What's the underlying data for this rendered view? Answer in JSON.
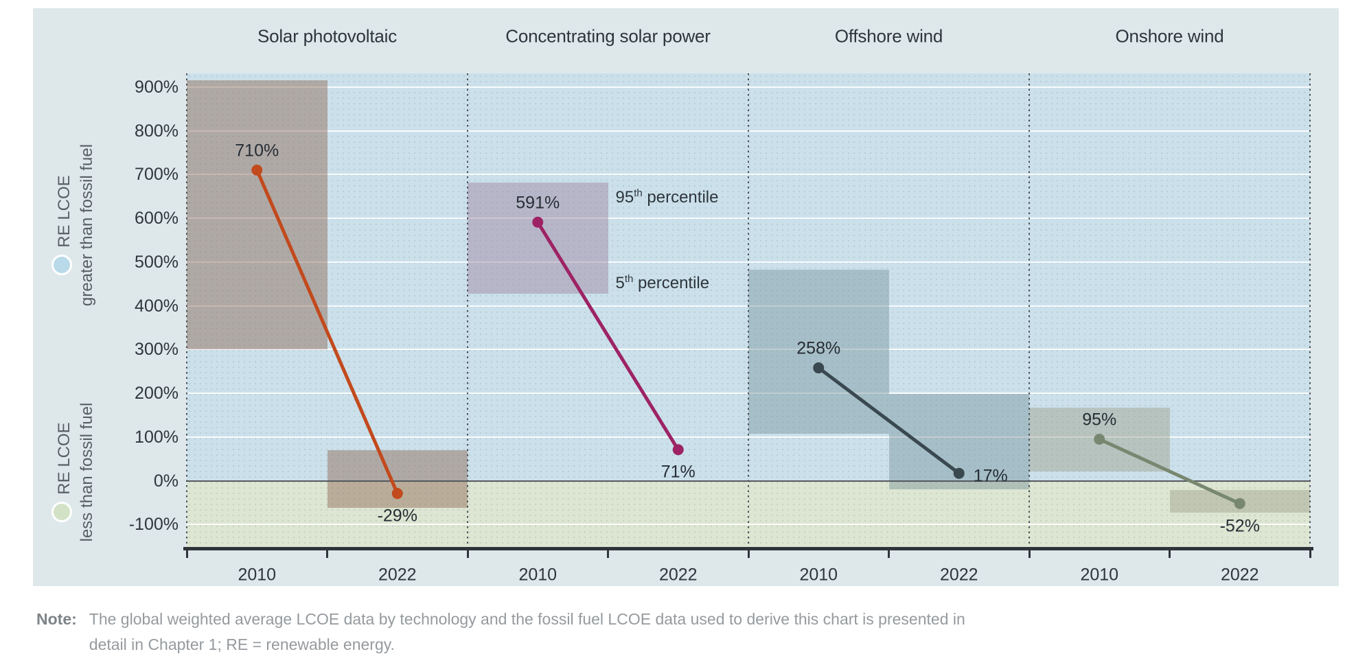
{
  "chart_data": {
    "type": "line",
    "subtype": "slope-chart-with-percentile-bands",
    "title": "",
    "categories": [
      "2010",
      "2022"
    ],
    "series": [
      {
        "name": "Solar photovoltaic",
        "values": [
          710,
          -29
        ],
        "value_labels": [
          "710%",
          "-29%"
        ],
        "label_positions": [
          "above",
          "below"
        ],
        "line_color": "#c24a1d",
        "band_color": "rgba(143,103,84,0.45)",
        "percentile_bands": [
          [
            300,
            915
          ],
          [
            -62,
            70
          ]
        ]
      },
      {
        "name": "Concentrating solar power",
        "values": [
          591,
          71
        ],
        "value_labels": [
          "591%",
          "71%"
        ],
        "label_positions": [
          "above",
          "below"
        ],
        "line_color": "#9d2365",
        "band_color": "rgba(160,130,160,0.45)",
        "percentile_bands": [
          [
            427,
            682
          ],
          null
        ]
      },
      {
        "name": "Offshore wind",
        "values": [
          258,
          17
        ],
        "value_labels": [
          "258%",
          "17%"
        ],
        "label_positions": [
          "above",
          "right"
        ],
        "line_color": "#3a4850",
        "band_color": "rgba(115,142,150,0.42)",
        "percentile_bands": [
          [
            108,
            482
          ],
          [
            -20,
            198
          ]
        ]
      },
      {
        "name": "Onshore wind",
        "values": [
          95,
          -52
        ],
        "value_labels": [
          "95%",
          "-52%"
        ],
        "label_positions": [
          "above",
          "below"
        ],
        "line_color": "#78876f",
        "band_color": "rgba(152,155,130,0.42)",
        "percentile_bands": [
          [
            21,
            167
          ],
          [
            -73,
            -21
          ]
        ]
      }
    ],
    "y_axis": {
      "tick_values": [
        900,
        800,
        700,
        600,
        500,
        400,
        300,
        200,
        100,
        0,
        -100
      ],
      "tick_suffix": "%",
      "range_max": 931,
      "range_min": -156
    },
    "x_axis": {
      "tick_labels_per_panel": [
        "2010",
        "2022"
      ]
    },
    "band_annotations": [
      {
        "number": "95",
        "sup": "th",
        "rest": " percentile",
        "at_value": 645
      },
      {
        "number": "5",
        "sup": "th",
        "rest": " percentile",
        "at_value": 450
      }
    ],
    "y_group_labels": [
      {
        "line1": "RE LCOE",
        "line2": "greater than fossil fuel",
        "dot_color": "#b9dae8"
      },
      {
        "line1": "RE LCOE",
        "line2": "less than fossil fuel",
        "dot_color": "#d2e2c6"
      }
    ],
    "colors": {
      "outer_background": "#dee8eb",
      "above_zero_background": "#cbe0ea",
      "below_zero_background": "#dce6d2",
      "gridline": "#ffffff",
      "zero_line": "#54595e",
      "axis_line": "#2e343a",
      "divider_dots": "#474e54",
      "text": "#2e353d"
    },
    "grid": true,
    "legend_position": "left-axis"
  },
  "note": {
    "label": "Note:",
    "line1": "The global weighted average LCOE data by technology and the fossil fuel LCOE data used to derive this chart is presented in",
    "line2": "detail in Chapter 1; RE = renewable energy."
  }
}
